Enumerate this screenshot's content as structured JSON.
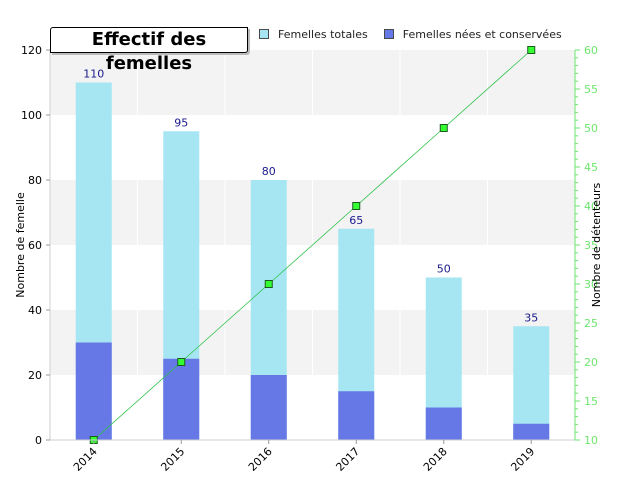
{
  "chart_data": {
    "type": "bar",
    "title": "Effectif des femelles",
    "categories": [
      "2014",
      "2015",
      "2016",
      "2017",
      "2018",
      "2019"
    ],
    "series": [
      {
        "name": "Femelles totales",
        "type": "bar",
        "axis": "left",
        "color": "#a6e6f2",
        "values": [
          110,
          95,
          80,
          65,
          50,
          35
        ],
        "data_labels": [
          "110",
          "95",
          "80",
          "65",
          "50",
          "35"
        ]
      },
      {
        "name": "Femelles nées et conservées",
        "type": "bar",
        "axis": "left",
        "color": "#6677e6",
        "values": [
          30,
          25,
          20,
          15,
          10,
          5
        ]
      },
      {
        "type": "line",
        "axis": "right",
        "color": "#2ec24a",
        "marker_color": "#33ff33",
        "values": [
          10,
          20,
          30,
          40,
          50,
          60
        ]
      }
    ],
    "ylabel": "Nombre de femelle",
    "ylabel_right": "Nombre de détenteurs",
    "ylim": [
      0,
      120
    ],
    "ylim_right": [
      10,
      60
    ],
    "yticks": [
      "0",
      "20",
      "40",
      "60",
      "80",
      "100",
      "120"
    ],
    "yticks_right": [
      "10",
      "15",
      "20",
      "25",
      "30",
      "35",
      "40",
      "45",
      "50",
      "55",
      "60"
    ],
    "xlabel": "",
    "grid": "horizontal bands",
    "legend_position": "top",
    "colors": {
      "band": "#f3f3f3",
      "right_axis": "#6ee66e",
      "label": "#1a1a8c"
    }
  }
}
